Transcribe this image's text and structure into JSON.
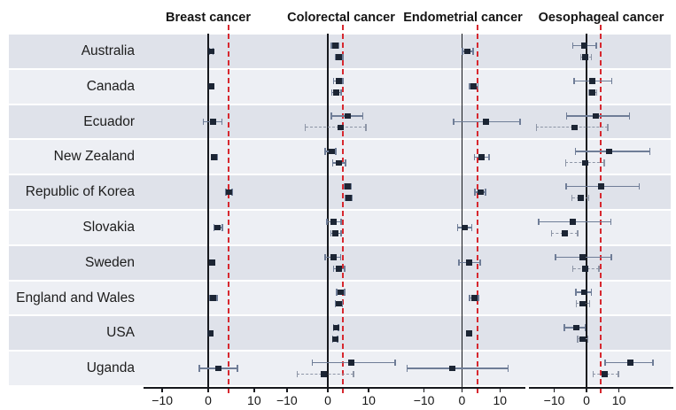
{
  "colors": {
    "point": "#1c2534",
    "whisker": "#6f7d97",
    "whisker_dashed": "#8d95a6",
    "ref_line": "#d7282f",
    "axis": "#16181d",
    "band_dark": "#dfe2ea",
    "band_light": "#edeff4",
    "text": "#1c1c1c"
  },
  "chart_data": {
    "type": "forest",
    "categories": [
      "Australia",
      "Canada",
      "Ecuador",
      "New Zealand",
      "Republic of Korea",
      "Slovakia",
      "Sweden",
      "England and Wales",
      "USA",
      "Uganda"
    ],
    "xticks": [
      -10,
      0,
      10
    ],
    "legend_position": "none",
    "grid": false,
    "panels": [
      {
        "title": "Breast cancer",
        "ref_line": 4.4,
        "xdomain": [
          -13.5,
          13.5
        ],
        "rows": [
          [
            {
              "v": 0.7,
              "lo": 0.3,
              "hi": 1.1,
              "style": "solid"
            }
          ],
          [
            {
              "v": 0.7,
              "lo": 0.2,
              "hi": 1.2,
              "style": "solid"
            }
          ],
          [
            {
              "v": 1.1,
              "lo": -1.1,
              "hi": 3.0,
              "style": "solid"
            }
          ],
          [
            {
              "v": 1.3,
              "lo": 0.7,
              "hi": 2.0,
              "style": "solid"
            }
          ],
          [
            {
              "v": 4.5,
              "lo": 3.9,
              "hi": 5.2,
              "style": "solid"
            }
          ],
          [
            {
              "v": 2.1,
              "lo": 1.3,
              "hi": 3.1,
              "style": "solid"
            }
          ],
          [
            {
              "v": 0.8,
              "lo": 0.3,
              "hi": 1.4,
              "style": "solid"
            }
          ],
          [
            {
              "v": 1.1,
              "lo": 0.4,
              "hi": 1.9,
              "style": "solid"
            }
          ],
          [
            {
              "v": 0.4,
              "lo": 0.1,
              "hi": 0.8,
              "style": "solid"
            }
          ],
          [
            {
              "v": 2.3,
              "lo": -1.9,
              "hi": 6.4,
              "style": "solid"
            }
          ]
        ]
      },
      {
        "title": "Colorectal cancer",
        "ref_line": 3.7,
        "xdomain": [
          -13,
          19.5
        ],
        "rows": [
          [
            {
              "v": 1.8,
              "lo": 0.9,
              "hi": 2.7,
              "style": "solid"
            },
            {
              "v": 2.8,
              "lo": 1.8,
              "hi": 3.7,
              "style": "solid"
            }
          ],
          [
            {
              "v": 2.6,
              "lo": 1.4,
              "hi": 3.7,
              "style": "solid"
            },
            {
              "v": 2.1,
              "lo": 1.0,
              "hi": 3.2,
              "style": "solid"
            }
          ],
          [
            {
              "v": 4.8,
              "lo": 0.9,
              "hi": 8.6,
              "style": "solid"
            },
            {
              "v": 3.1,
              "lo": -5.5,
              "hi": 9.3,
              "style": "dashed"
            }
          ],
          [
            {
              "v": 1.0,
              "lo": -0.6,
              "hi": 2.0,
              "style": "solid"
            },
            {
              "v": 2.7,
              "lo": 1.2,
              "hi": 4.3,
              "style": "solid"
            }
          ],
          [
            {
              "v": 4.9,
              "lo": 4.1,
              "hi": 5.7,
              "style": "solid"
            },
            {
              "v": 5.0,
              "lo": 4.2,
              "hi": 5.8,
              "style": "solid"
            }
          ],
          [
            {
              "v": 1.5,
              "lo": -0.2,
              "hi": 3.2,
              "style": "solid"
            },
            {
              "v": 1.9,
              "lo": 0.8,
              "hi": 3.3,
              "style": "solid"
            }
          ],
          [
            {
              "v": 1.3,
              "lo": -0.7,
              "hi": 3.1,
              "style": "solid"
            },
            {
              "v": 2.7,
              "lo": 1.4,
              "hi": 4.1,
              "style": "solid"
            }
          ],
          [
            {
              "v": 3.1,
              "lo": 2.2,
              "hi": 4.1,
              "style": "solid"
            },
            {
              "v": 2.7,
              "lo": 1.8,
              "hi": 3.6,
              "style": "solid"
            }
          ],
          [
            {
              "v": 2.0,
              "lo": 1.4,
              "hi": 2.6,
              "style": "solid"
            },
            {
              "v": 1.8,
              "lo": 1.2,
              "hi": 2.4,
              "style": "solid"
            }
          ],
          [
            {
              "v": 5.8,
              "lo": -3.8,
              "hi": 16.5,
              "style": "solid"
            },
            {
              "v": -1.0,
              "lo": -7.5,
              "hi": 6.3,
              "style": "dashed"
            }
          ]
        ]
      },
      {
        "title": "Endometrial cancer",
        "ref_line": 4.2,
        "xdomain": [
          -15.5,
          16
        ],
        "rows": [
          [
            {
              "v": 1.5,
              "lo": 0.1,
              "hi": 2.9,
              "style": "solid"
            }
          ],
          [
            {
              "v": 3.0,
              "lo": 2.0,
              "hi": 4.2,
              "style": "solid"
            }
          ],
          [
            {
              "v": 6.2,
              "lo": -2.2,
              "hi": 15.3,
              "style": "solid"
            }
          ],
          [
            {
              "v": 5.2,
              "lo": 3.3,
              "hi": 7.1,
              "style": "solid"
            }
          ],
          [
            {
              "v": 5.0,
              "lo": 3.4,
              "hi": 6.2,
              "style": "solid"
            }
          ],
          [
            {
              "v": 0.7,
              "lo": -1.2,
              "hi": 2.6,
              "style": "solid"
            }
          ],
          [
            {
              "v": 1.8,
              "lo": -0.8,
              "hi": 4.8,
              "style": "solid"
            }
          ],
          [
            {
              "v": 3.2,
              "lo": 2.0,
              "hi": 4.3,
              "style": "solid"
            }
          ],
          [
            {
              "v": 1.8,
              "lo": 1.3,
              "hi": 2.3,
              "style": "solid"
            }
          ],
          [
            {
              "v": -2.5,
              "lo": -14.5,
              "hi": 12.1,
              "style": "solid"
            }
          ]
        ]
      },
      {
        "title": "Oesophageal cancer",
        "ref_line": 4.4,
        "xdomain": [
          -17,
          26
        ],
        "rows": [
          [
            {
              "v": -0.8,
              "lo": -4.2,
              "hi": 3.0,
              "style": "solid"
            },
            {
              "v": -0.3,
              "lo": -1.8,
              "hi": 1.5,
              "style": "dashed"
            }
          ],
          [
            {
              "v": 1.7,
              "lo": -3.9,
              "hi": 7.8,
              "style": "solid"
            },
            {
              "v": 1.8,
              "lo": 0.6,
              "hi": 3.1,
              "style": "dashed"
            }
          ],
          [
            {
              "v": 2.9,
              "lo": -6.2,
              "hi": 13.2,
              "style": "solid"
            },
            {
              "v": -3.8,
              "lo": -15.5,
              "hi": 6.5,
              "style": "dashed"
            }
          ],
          [
            {
              "v": 7.0,
              "lo": -3.4,
              "hi": 19.5,
              "style": "solid"
            },
            {
              "v": -0.4,
              "lo": -6.5,
              "hi": 5.4,
              "style": "dashed"
            }
          ],
          [
            {
              "v": 4.5,
              "lo": -6.3,
              "hi": 16.3,
              "style": "solid"
            },
            {
              "v": -1.9,
              "lo": -4.5,
              "hi": 0.6,
              "style": "dashed"
            }
          ],
          [
            {
              "v": -4.3,
              "lo": -14.8,
              "hi": 7.5,
              "style": "solid"
            },
            {
              "v": -6.8,
              "lo": -10.9,
              "hi": -2.8,
              "style": "dashed"
            }
          ],
          [
            {
              "v": -1.2,
              "lo": -9.6,
              "hi": 7.7,
              "style": "solid"
            },
            {
              "v": -0.5,
              "lo": -4.2,
              "hi": 3.8,
              "style": "dashed"
            }
          ],
          [
            {
              "v": -0.8,
              "lo": -3.3,
              "hi": 1.5,
              "style": "solid"
            },
            {
              "v": -1.2,
              "lo": -3.2,
              "hi": 1.0,
              "style": "dashed"
            }
          ],
          [
            {
              "v": -3.3,
              "lo": -6.8,
              "hi": -0.4,
              "style": "solid"
            },
            {
              "v": -1.2,
              "lo": -2.8,
              "hi": 0.4,
              "style": "dashed"
            }
          ],
          [
            {
              "v": 13.5,
              "lo": 5.8,
              "hi": 20.5,
              "style": "solid"
            },
            {
              "v": 5.5,
              "lo": 2.0,
              "hi": 9.8,
              "style": "dashed"
            }
          ]
        ]
      }
    ]
  }
}
